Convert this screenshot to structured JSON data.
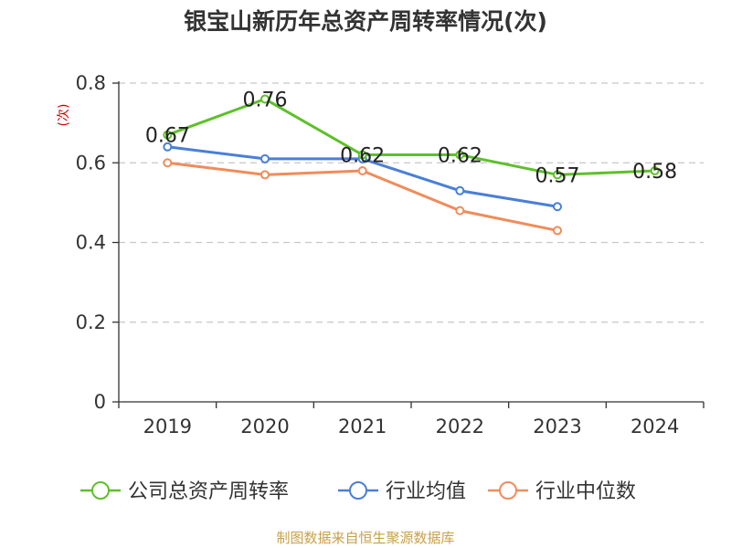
{
  "chart_data": {
    "type": "line",
    "title": "银宝山新历年总资产周转率情况(次)",
    "ylabel": "(次)",
    "xlabel": "",
    "categories": [
      "2019",
      "2020",
      "2021",
      "2022",
      "2023",
      "2024"
    ],
    "ylim": [
      0,
      0.8
    ],
    "yticks": [
      "0",
      "0.2",
      "0.4",
      "0.6",
      "0.8"
    ],
    "grid": true,
    "legend_position": "bottom",
    "series": [
      {
        "name": "公司总资产周转率",
        "color": "#5ec02a",
        "values": [
          0.67,
          0.76,
          0.62,
          0.62,
          0.57,
          0.58
        ],
        "labels": [
          "0.67",
          "0.76",
          "0.62",
          "0.62",
          "0.57",
          "0.58"
        ]
      },
      {
        "name": "行业均值",
        "color": "#4a7fd6",
        "values": [
          0.64,
          0.61,
          0.61,
          0.53,
          0.49,
          null
        ]
      },
      {
        "name": "行业中位数",
        "color": "#f08c5a",
        "values": [
          0.6,
          0.57,
          0.58,
          0.48,
          0.43,
          null
        ]
      }
    ],
    "source": "制图数据来自恒生聚源数据库"
  }
}
